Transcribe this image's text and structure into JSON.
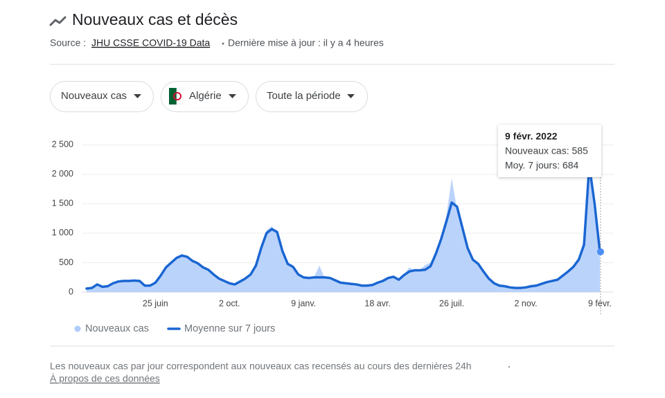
{
  "header": {
    "title": "Nouveaux cas et décès",
    "source_label": "Source :",
    "source_link": "JHU CSSE COVID-19 Data",
    "updated": "Dernière mise à jour : il y a 4 heures"
  },
  "filters": [
    "Nouveaux cas",
    "Algérie",
    "Toute la période"
  ],
  "chart_data": {
    "type": "area-line",
    "categories": [
      null,
      null,
      null,
      null,
      null,
      null,
      null,
      null,
      null,
      null,
      null,
      null,
      null,
      "25 juin",
      null,
      null,
      null,
      null,
      null,
      null,
      null,
      null,
      null,
      null,
      null,
      null,
      null,
      "2 oct.",
      null,
      null,
      null,
      null,
      null,
      null,
      null,
      null,
      null,
      null,
      null,
      null,
      null,
      "9 janv.",
      null,
      null,
      null,
      null,
      null,
      null,
      null,
      null,
      null,
      null,
      null,
      null,
      null,
      "18 avr.",
      null,
      null,
      null,
      null,
      null,
      null,
      null,
      null,
      null,
      null,
      null,
      null,
      null,
      "26 juil.",
      null,
      null,
      null,
      null,
      null,
      null,
      null,
      null,
      null,
      null,
      null,
      null,
      null,
      "2 nov.",
      null,
      null,
      null,
      null,
      null,
      null,
      null,
      null,
      null,
      null,
      null,
      null,
      null,
      "9 févr."
    ],
    "series": [
      {
        "name": "Nouveaux cas",
        "color": "#aecbfa",
        "values": [
          70,
          80,
          150,
          100,
          110,
          160,
          190,
          195,
          200,
          200,
          180,
          100,
          120,
          170,
          300,
          450,
          520,
          600,
          650,
          610,
          520,
          480,
          410,
          370,
          290,
          220,
          180,
          140,
          140,
          200,
          250,
          320,
          500,
          800,
          1050,
          1120,
          1000,
          650,
          460,
          420,
          290,
          240,
          250,
          260,
          450,
          240,
          230,
          190,
          150,
          140,
          130,
          120,
          110,
          100,
          130,
          170,
          200,
          250,
          270,
          200,
          300,
          420,
          360,
          380,
          460,
          500,
          700,
          950,
          1300,
          1930,
          1400,
          1050,
          700,
          520,
          460,
          330,
          220,
          140,
          100,
          95,
          75,
          70,
          65,
          85,
          100,
          115,
          150,
          175,
          200,
          220,
          300,
          380,
          450,
          600,
          900,
          2050,
          1300,
          585
        ]
      },
      {
        "name": "Moyenne sur 7 jours",
        "color": "#1a66d2",
        "values": [
          60,
          70,
          130,
          90,
          100,
          150,
          180,
          190,
          190,
          195,
          190,
          110,
          110,
          160,
          280,
          420,
          500,
          580,
          620,
          600,
          530,
          490,
          420,
          380,
          300,
          230,
          190,
          150,
          130,
          180,
          230,
          300,
          450,
          750,
          1000,
          1070,
          1020,
          700,
          480,
          430,
          300,
          250,
          240,
          250,
          250,
          250,
          240,
          200,
          160,
          150,
          140,
          130,
          110,
          110,
          120,
          160,
          190,
          240,
          260,
          210,
          290,
          350,
          370,
          370,
          380,
          440,
          650,
          900,
          1200,
          1520,
          1450,
          1100,
          750,
          550,
          480,
          350,
          230,
          150,
          110,
          100,
          80,
          70,
          70,
          80,
          100,
          110,
          140,
          170,
          190,
          210,
          280,
          350,
          430,
          550,
          800,
          2150,
          1500,
          684
        ]
      }
    ],
    "ylim": [
      0,
      2750
    ],
    "yticks": [
      0,
      500,
      {
        "value": 1000,
        "label": "1 000"
      },
      {
        "value": 1500,
        "label": "1 500"
      },
      {
        "value": 2000,
        "label": "2 000"
      },
      {
        "value": 2500,
        "label": "2 500"
      }
    ],
    "grid": true,
    "tooltip": {
      "title": "9 févr. 2022",
      "lines": [
        "Nouveaux cas: 585",
        "Moy. 7 jours: 684"
      ]
    }
  },
  "footer": {
    "note": "Les nouveaux cas par jour correspondent aux nouveaux cas recensés au cours des dernières 24h",
    "link": "À propos de ces données"
  }
}
